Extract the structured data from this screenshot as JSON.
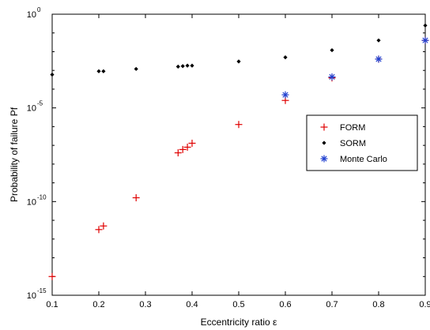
{
  "chart_data": {
    "type": "scatter",
    "xlabel": "Eccentricity ratio ε",
    "ylabel": "Probability of failure Pf",
    "xlim": [
      0.1,
      0.9
    ],
    "ylim_exponent": [
      -15,
      0
    ],
    "y_scale": "log",
    "x_ticks": [
      "0.1",
      "0.2",
      "0.3",
      "0.4",
      "0.5",
      "0.6",
      "0.7",
      "0.8",
      "0.9"
    ],
    "y_ticks": [
      {
        "base": "10",
        "exp": "0"
      },
      {
        "base": "10",
        "exp": "-5"
      },
      {
        "base": "10",
        "exp": "-10"
      },
      {
        "base": "10",
        "exp": "-15"
      }
    ],
    "grid": false,
    "legend_position": "right",
    "series": [
      {
        "name": "FORM",
        "marker": "plus",
        "color": "#e00000",
        "points": [
          {
            "x": 0.1,
            "y": 1e-14
          },
          {
            "x": 0.2,
            "y": 3.2e-12
          },
          {
            "x": 0.21,
            "y": 5e-12
          },
          {
            "x": 0.28,
            "y": 1.6e-10
          },
          {
            "x": 0.37,
            "y": 4e-08
          },
          {
            "x": 0.38,
            "y": 6e-08
          },
          {
            "x": 0.39,
            "y": 8e-08
          },
          {
            "x": 0.4,
            "y": 1.3e-07
          },
          {
            "x": 0.5,
            "y": 1.3e-06
          },
          {
            "x": 0.6,
            "y": 2.5e-05
          },
          {
            "x": 0.7,
            "y": 0.0004
          },
          {
            "x": 0.8,
            "y": 0.004
          },
          {
            "x": 0.9,
            "y": 0.04
          }
        ]
      },
      {
        "name": "SORM",
        "marker": "dot",
        "color": "#000000",
        "points": [
          {
            "x": 0.1,
            "y": 0.0006
          },
          {
            "x": 0.2,
            "y": 0.0009
          },
          {
            "x": 0.21,
            "y": 0.0009
          },
          {
            "x": 0.28,
            "y": 0.0012
          },
          {
            "x": 0.37,
            "y": 0.0016
          },
          {
            "x": 0.38,
            "y": 0.0017
          },
          {
            "x": 0.39,
            "y": 0.0018
          },
          {
            "x": 0.4,
            "y": 0.0018
          },
          {
            "x": 0.5,
            "y": 0.003
          },
          {
            "x": 0.6,
            "y": 0.005
          },
          {
            "x": 0.7,
            "y": 0.012
          },
          {
            "x": 0.8,
            "y": 0.04
          },
          {
            "x": 0.9,
            "y": 0.25
          }
        ]
      },
      {
        "name": "Monte Carlo",
        "marker": "asterisk",
        "color": "#2040d0",
        "points": [
          {
            "x": 0.6,
            "y": 5e-05
          },
          {
            "x": 0.7,
            "y": 0.00045
          },
          {
            "x": 0.8,
            "y": 0.004
          },
          {
            "x": 0.9,
            "y": 0.04
          }
        ]
      }
    ]
  }
}
